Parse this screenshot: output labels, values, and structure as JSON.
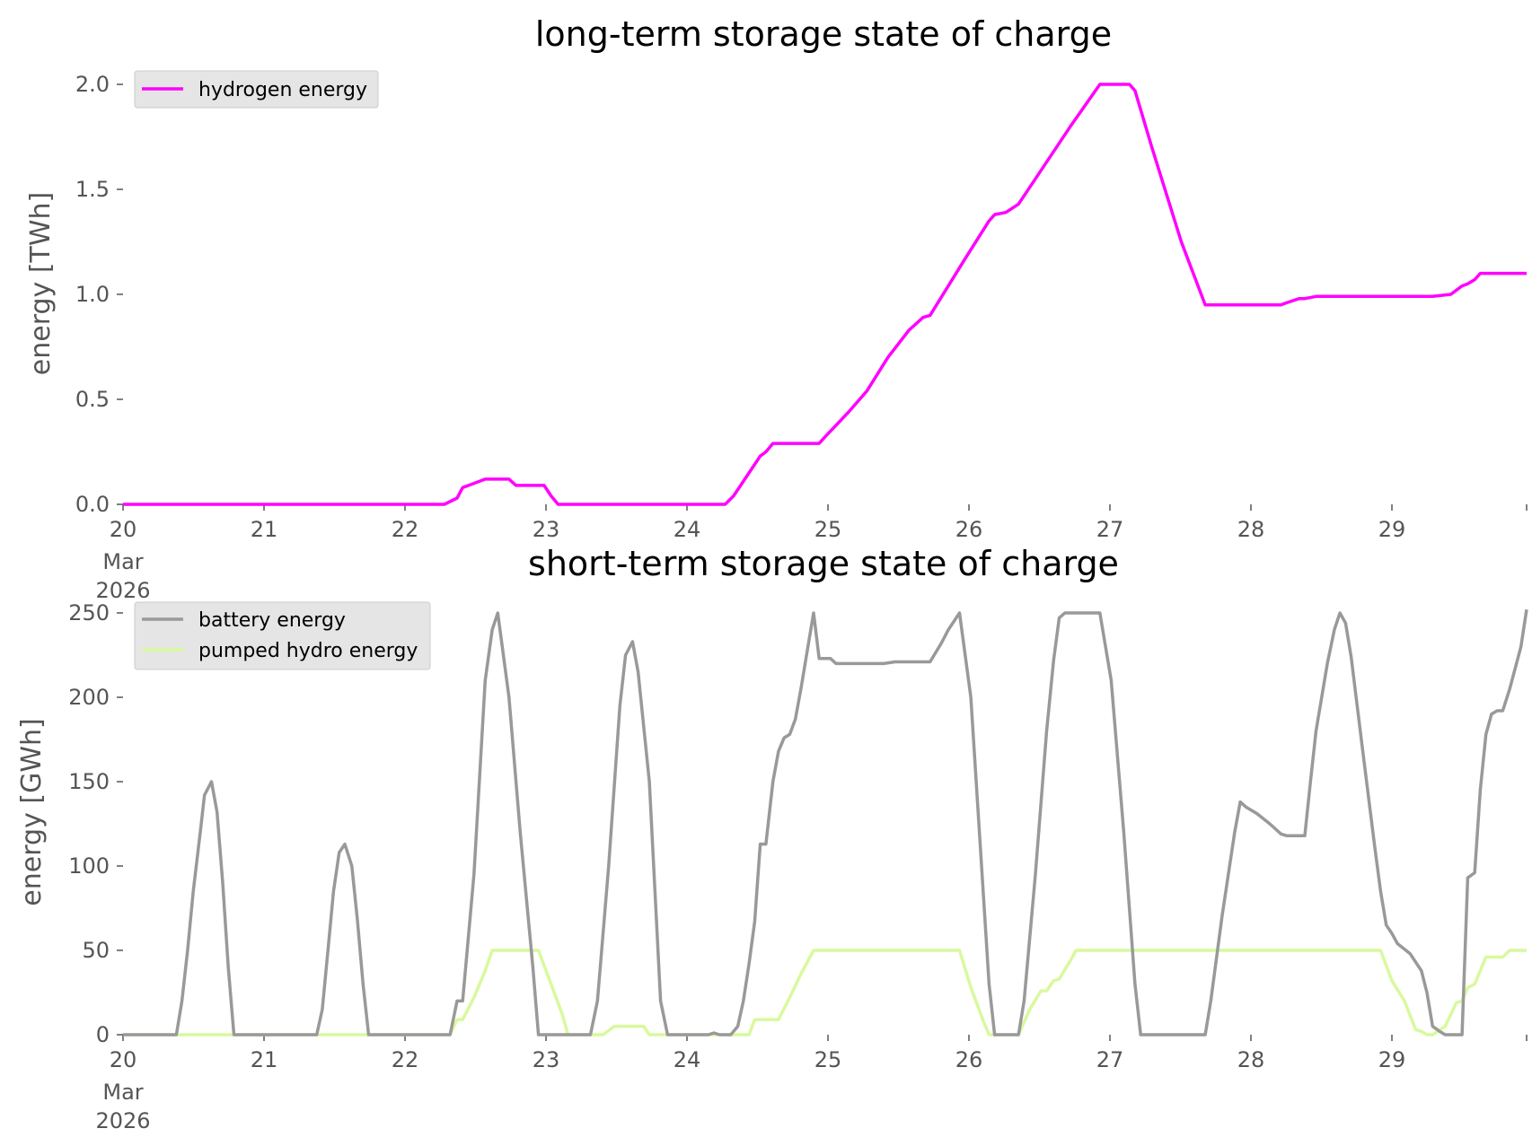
{
  "colors": {
    "hydrogen": "#ff00ff",
    "battery": "#999999",
    "pumped_hydro": "#d9f99d",
    "legend_bg": "#e5e5e5",
    "text": "#555555"
  },
  "chart_data": [
    {
      "type": "line",
      "title": "long-term storage state of charge",
      "ylabel": "energy [TWh]",
      "xlabel": "",
      "xlim": [
        20,
        30
      ],
      "ylim": [
        0,
        2.0
      ],
      "yticks": [
        0.0,
        0.5,
        1.0,
        1.5,
        2.0
      ],
      "ytick_labels": [
        "0.0",
        "0.5",
        "1.0",
        "1.5",
        "2.0"
      ],
      "xticks": [
        20,
        21,
        22,
        23,
        24,
        25,
        26,
        27,
        28,
        29
      ],
      "xtick_labels": [
        "20",
        "21",
        "22",
        "23",
        "24",
        "25",
        "26",
        "27",
        "28",
        "29"
      ],
      "xtick_sublabels": [
        "Mar",
        "2026"
      ],
      "grid": false,
      "legend": "top-left",
      "series": [
        {
          "name": "hydrogen energy",
          "color": "#ff00ff",
          "points": [
            [
              20.0,
              0.0
            ],
            [
              22.29,
              0.0
            ],
            [
              22.38,
              0.03
            ],
            [
              22.42,
              0.08
            ],
            [
              22.5,
              0.1
            ],
            [
              22.58,
              0.12
            ],
            [
              22.63,
              0.12
            ],
            [
              22.75,
              0.12
            ],
            [
              22.8,
              0.09
            ],
            [
              23.0,
              0.09
            ],
            [
              23.05,
              0.04
            ],
            [
              23.1,
              0.0
            ],
            [
              24.29,
              0.0
            ],
            [
              24.35,
              0.04
            ],
            [
              24.46,
              0.15
            ],
            [
              24.54,
              0.23
            ],
            [
              24.58,
              0.25
            ],
            [
              24.63,
              0.29
            ],
            [
              24.96,
              0.29
            ],
            [
              25.0,
              0.32
            ],
            [
              25.17,
              0.44
            ],
            [
              25.3,
              0.54
            ],
            [
              25.45,
              0.7
            ],
            [
              25.6,
              0.83
            ],
            [
              25.7,
              0.89
            ],
            [
              25.75,
              0.9
            ],
            [
              26.0,
              1.17
            ],
            [
              26.17,
              1.35
            ],
            [
              26.21,
              1.38
            ],
            [
              26.29,
              1.39
            ],
            [
              26.38,
              1.43
            ],
            [
              26.75,
              1.8
            ],
            [
              26.96,
              2.0
            ],
            [
              27.17,
              2.0
            ],
            [
              27.21,
              1.97
            ],
            [
              27.33,
              1.7
            ],
            [
              27.54,
              1.25
            ],
            [
              27.71,
              0.95
            ],
            [
              28.25,
              0.95
            ],
            [
              28.29,
              0.96
            ],
            [
              28.38,
              0.98
            ],
            [
              28.42,
              0.98
            ],
            [
              28.5,
              0.99
            ],
            [
              29.33,
              0.99
            ],
            [
              29.46,
              1.0
            ],
            [
              29.54,
              1.04
            ],
            [
              29.58,
              1.05
            ],
            [
              29.63,
              1.07
            ],
            [
              29.67,
              1.1
            ],
            [
              30.0,
              1.1
            ]
          ]
        }
      ]
    },
    {
      "type": "line",
      "title": "short-term storage state of charge",
      "ylabel": "energy [GWh]",
      "xlabel": "",
      "xlim": [
        20,
        30
      ],
      "ylim": [
        0,
        250
      ],
      "yticks": [
        0,
        50,
        100,
        150,
        200,
        250
      ],
      "ytick_labels": [
        "0",
        "50",
        "100",
        "150",
        "200",
        "250"
      ],
      "xticks": [
        20,
        21,
        22,
        23,
        24,
        25,
        26,
        27,
        28,
        29
      ],
      "xtick_labels": [
        "20",
        "21",
        "22",
        "23",
        "24",
        "25",
        "26",
        "27",
        "28",
        "29"
      ],
      "xtick_sublabels": [
        "Mar",
        "2026"
      ],
      "grid": false,
      "legend": "top-left",
      "series": [
        {
          "name": "battery energy",
          "color": "#999999",
          "points": [
            [
              20.0,
              0
            ],
            [
              20.38,
              0
            ],
            [
              20.42,
              20
            ],
            [
              20.46,
              50
            ],
            [
              20.5,
              85
            ],
            [
              20.55,
              120
            ],
            [
              20.58,
              142
            ],
            [
              20.63,
              150
            ],
            [
              20.67,
              132
            ],
            [
              20.71,
              90
            ],
            [
              20.75,
              40
            ],
            [
              20.79,
              0
            ],
            [
              21.38,
              0
            ],
            [
              21.42,
              15
            ],
            [
              21.46,
              50
            ],
            [
              21.5,
              85
            ],
            [
              21.54,
              108
            ],
            [
              21.58,
              113
            ],
            [
              21.63,
              100
            ],
            [
              21.67,
              68
            ],
            [
              21.71,
              30
            ],
            [
              21.75,
              0
            ],
            [
              22.33,
              0
            ],
            [
              22.38,
              20
            ],
            [
              22.42,
              20
            ],
            [
              22.5,
              95
            ],
            [
              22.58,
              210
            ],
            [
              22.63,
              240
            ],
            [
              22.67,
              250
            ],
            [
              22.75,
              200
            ],
            [
              22.83,
              120
            ],
            [
              22.92,
              40
            ],
            [
              22.96,
              0
            ],
            [
              23.33,
              0
            ],
            [
              23.38,
              20
            ],
            [
              23.46,
              100
            ],
            [
              23.54,
              195
            ],
            [
              23.58,
              225
            ],
            [
              23.63,
              233
            ],
            [
              23.67,
              215
            ],
            [
              23.75,
              150
            ],
            [
              23.83,
              20
            ],
            [
              23.88,
              0
            ],
            [
              24.17,
              0
            ],
            [
              24.21,
              1
            ],
            [
              24.25,
              0
            ],
            [
              24.33,
              0
            ],
            [
              24.38,
              5
            ],
            [
              24.42,
              20
            ],
            [
              24.46,
              42
            ],
            [
              24.5,
              67
            ],
            [
              24.54,
              113
            ],
            [
              24.58,
              113
            ],
            [
              24.63,
              150
            ],
            [
              24.67,
              168
            ],
            [
              24.71,
              176
            ],
            [
              24.75,
              178
            ],
            [
              24.79,
              187
            ],
            [
              24.83,
              205
            ],
            [
              24.88,
              230
            ],
            [
              24.92,
              250
            ],
            [
              24.96,
              223
            ],
            [
              25.04,
              223
            ],
            [
              25.08,
              220
            ],
            [
              25.42,
              220
            ],
            [
              25.5,
              221
            ],
            [
              25.75,
              221
            ],
            [
              25.83,
              232
            ],
            [
              25.88,
              240
            ],
            [
              25.96,
              250
            ],
            [
              26.04,
              200
            ],
            [
              26.17,
              30
            ],
            [
              26.21,
              0
            ],
            [
              26.38,
              0
            ],
            [
              26.42,
              20
            ],
            [
              26.5,
              95
            ],
            [
              26.58,
              180
            ],
            [
              26.63,
              222
            ],
            [
              26.67,
              247
            ],
            [
              26.71,
              250
            ],
            [
              26.96,
              250
            ],
            [
              27.04,
              210
            ],
            [
              27.13,
              120
            ],
            [
              27.21,
              30
            ],
            [
              27.25,
              0
            ],
            [
              27.71,
              0
            ],
            [
              27.75,
              20
            ],
            [
              27.83,
              70
            ],
            [
              27.92,
              120
            ],
            [
              27.96,
              138
            ],
            [
              28.0,
              135
            ],
            [
              28.08,
              131
            ],
            [
              28.17,
              125
            ],
            [
              28.25,
              119
            ],
            [
              28.29,
              118
            ],
            [
              28.38,
              118
            ],
            [
              28.42,
              118
            ],
            [
              28.46,
              150
            ],
            [
              28.5,
              180
            ],
            [
              28.58,
              220
            ],
            [
              28.63,
              240
            ],
            [
              28.67,
              250
            ],
            [
              28.71,
              244
            ],
            [
              28.75,
              224
            ],
            [
              28.83,
              170
            ],
            [
              28.92,
              110
            ],
            [
              28.96,
              85
            ],
            [
              29.0,
              65
            ],
            [
              29.04,
              60
            ],
            [
              29.08,
              54
            ],
            [
              29.17,
              48
            ],
            [
              29.25,
              38
            ],
            [
              29.29,
              25
            ],
            [
              29.33,
              5
            ],
            [
              29.38,
              2
            ],
            [
              29.42,
              0
            ],
            [
              29.54,
              0
            ],
            [
              29.58,
              93
            ],
            [
              29.63,
              96
            ],
            [
              29.67,
              145
            ],
            [
              29.71,
              178
            ],
            [
              29.75,
              190
            ],
            [
              29.79,
              192
            ],
            [
              29.83,
              192
            ],
            [
              29.88,
              205
            ],
            [
              29.96,
              230
            ],
            [
              30.0,
              252
            ]
          ]
        },
        {
          "name": "pumped hydro energy",
          "color": "#d9f99d",
          "points": [
            [
              20.0,
              0
            ],
            [
              22.33,
              0
            ],
            [
              22.38,
              9
            ],
            [
              22.42,
              9
            ],
            [
              22.5,
              22
            ],
            [
              22.58,
              38
            ],
            [
              22.63,
              50
            ],
            [
              22.96,
              50
            ],
            [
              23.04,
              32
            ],
            [
              23.13,
              12
            ],
            [
              23.17,
              0
            ],
            [
              23.42,
              0
            ],
            [
              23.5,
              5
            ],
            [
              23.71,
              5
            ],
            [
              23.75,
              0
            ],
            [
              24.46,
              0
            ],
            [
              24.5,
              9
            ],
            [
              24.67,
              9
            ],
            [
              24.75,
              22
            ],
            [
              24.83,
              36
            ],
            [
              24.92,
              50
            ],
            [
              25.96,
              50
            ],
            [
              26.04,
              28
            ],
            [
              26.13,
              8
            ],
            [
              26.17,
              0
            ],
            [
              26.38,
              0
            ],
            [
              26.46,
              15
            ],
            [
              26.54,
              26
            ],
            [
              26.58,
              26
            ],
            [
              26.63,
              32
            ],
            [
              26.67,
              33
            ],
            [
              26.75,
              44
            ],
            [
              26.79,
              50
            ],
            [
              28.96,
              50
            ],
            [
              29.04,
              32
            ],
            [
              29.13,
              20
            ],
            [
              29.21,
              3
            ],
            [
              29.25,
              2
            ],
            [
              29.29,
              0
            ],
            [
              29.33,
              0
            ],
            [
              29.42,
              5
            ],
            [
              29.5,
              19
            ],
            [
              29.54,
              20
            ],
            [
              29.58,
              28
            ],
            [
              29.63,
              30
            ],
            [
              29.71,
              46
            ],
            [
              29.83,
              46
            ],
            [
              29.88,
              50
            ],
            [
              30.0,
              50
            ]
          ]
        }
      ]
    }
  ]
}
